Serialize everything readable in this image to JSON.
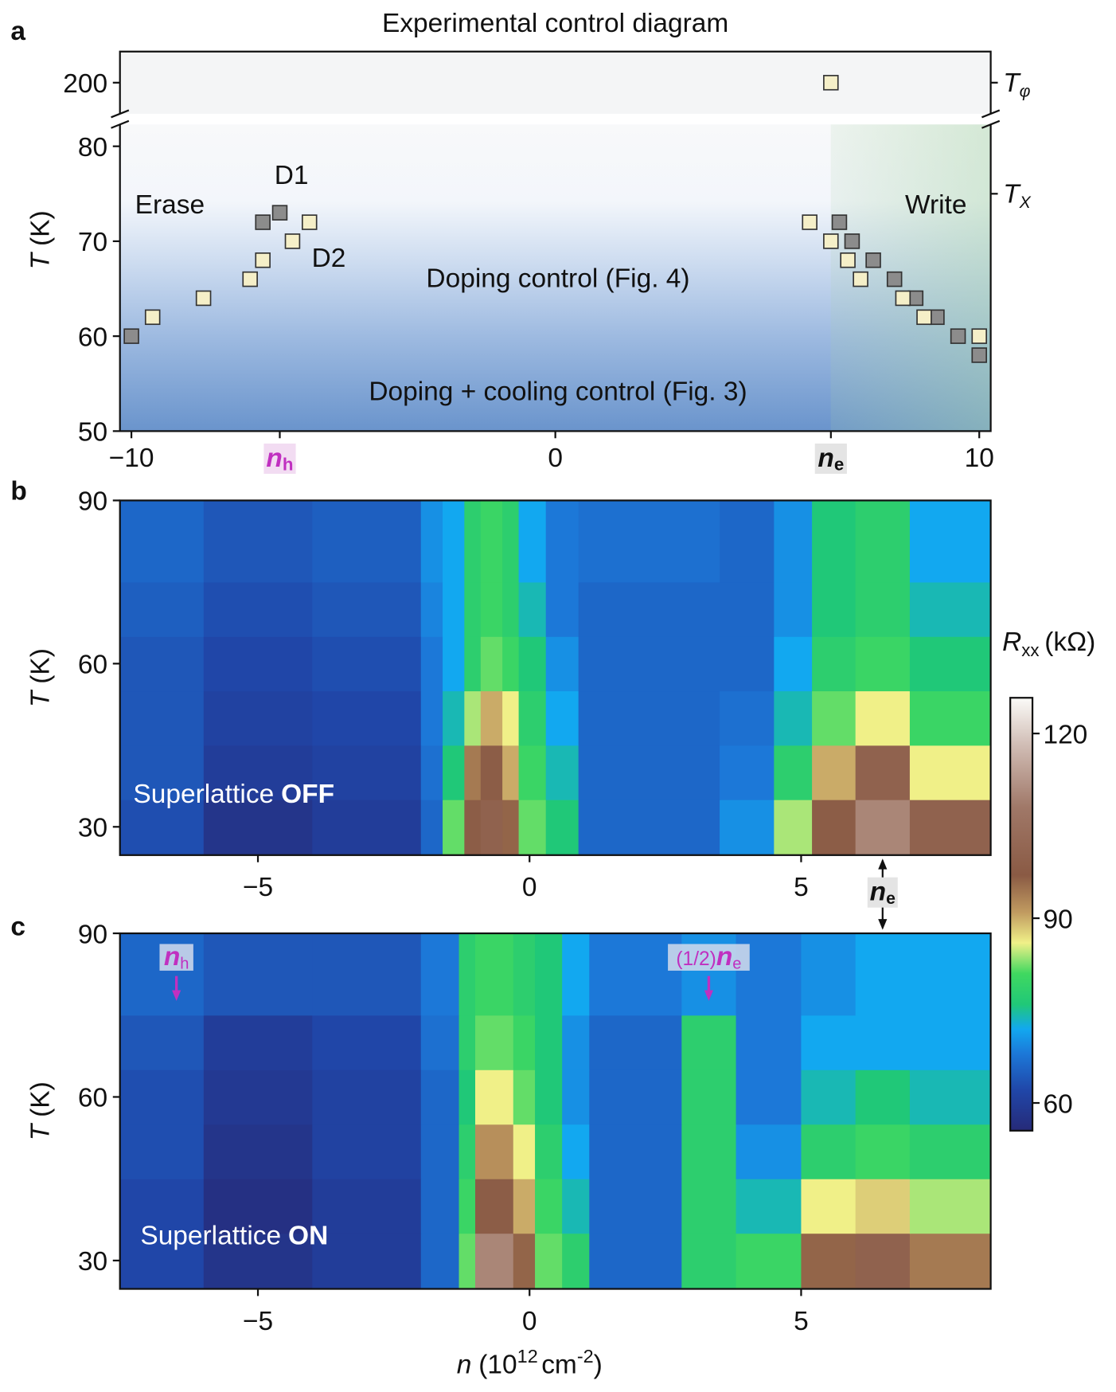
{
  "chart_data": [
    {
      "type": "scatter",
      "panel_label": "a",
      "title": "Experimental control diagram",
      "y_label": [
        "T",
        "(K)"
      ],
      "xlim": [
        -10.27,
        10.27
      ],
      "ylim": [
        50,
        82.3
      ],
      "ylim_top": [
        194.5,
        205.5
      ],
      "xticks": [
        {
          "value": -10,
          "label": "−10"
        },
        0,
        10
      ],
      "yticks": [
        50,
        60,
        70,
        80
      ],
      "yticks_top": [
        200
      ],
      "x_markers": [
        {
          "value": -6.5,
          "symbol": "n",
          "sub": "h",
          "color": "#c030c0"
        },
        {
          "value": 6.5,
          "symbol": "n",
          "sub": "e",
          "color": "#111111"
        }
      ],
      "right_ticks": [
        {
          "value": 200,
          "symbol": "T",
          "sub": "φ"
        },
        {
          "value": 75,
          "symbol": "T",
          "sub": "X"
        }
      ],
      "annotations": [
        "Erase",
        "Write",
        "Doping control (Fig. 4)",
        "Doping + cooling control (Fig. 3)"
      ],
      "series": [
        {
          "name": "D1",
          "color": "#8c8c8c",
          "x": [
            -10,
            -6.9,
            -6.5,
            6.7,
            7.0,
            7.5,
            8.0,
            8.5,
            9.0,
            9.5,
            10.0
          ],
          "values": [
            60,
            72,
            73,
            72,
            70,
            68,
            66,
            64,
            62,
            60,
            58
          ]
        },
        {
          "name": "D2",
          "color": "#f5efc8",
          "x": [
            -9.5,
            -8.3,
            -7.2,
            -6.9,
            -6.2,
            -5.8,
            6.0,
            6.5,
            6.9,
            7.2,
            8.2,
            8.7,
            10.0,
            6.5
          ],
          "values": [
            62,
            64,
            66,
            68,
            70,
            72,
            72,
            70,
            68,
            66,
            64,
            62,
            60,
            200
          ]
        }
      ]
    },
    {
      "type": "heatmap",
      "panel_label": "b",
      "y_label": [
        "T",
        "(K)"
      ],
      "annotation": [
        "Superlattice",
        "OFF"
      ],
      "xlim": [
        -7.54,
        8.49
      ],
      "ylim": [
        24.8,
        90
      ],
      "xticks": [
        {
          "value": -5,
          "label": "−5"
        },
        0,
        5
      ],
      "yticks": [
        30,
        60,
        90
      ],
      "markers": [
        {
          "value": 6.5,
          "symbol": "n",
          "sub": "e"
        }
      ],
      "x": [
        -7.54,
        -6,
        -4,
        -2,
        -1.6,
        -1.2,
        -0.9,
        -0.5,
        -0.2,
        0.3,
        0.9,
        3.5,
        4.5,
        5.2,
        6,
        7,
        8.49
      ],
      "y": [
        24.8,
        35,
        45,
        55,
        65,
        75,
        90
      ],
      "values": [
        [
          63,
          58,
          60,
          66,
          82,
          98,
          100,
          96,
          82,
          76,
          66,
          70,
          84,
          98,
          110,
          100
        ],
        [
          64,
          60,
          61,
          67,
          76,
          94,
          98,
          90,
          80,
          74,
          66,
          68,
          78,
          90,
          100,
          86
        ],
        [
          64,
          61,
          62,
          68,
          74,
          84,
          90,
          86,
          78,
          72,
          66,
          67,
          74,
          82,
          86,
          80
        ],
        [
          64,
          62,
          63,
          68,
          72,
          78,
          82,
          80,
          76,
          70,
          66,
          66,
          72,
          78,
          80,
          76
        ],
        [
          65,
          63,
          64,
          69,
          72,
          78,
          80,
          78,
          74,
          68,
          66,
          66,
          70,
          76,
          78,
          74
        ],
        [
          66,
          64,
          65,
          70,
          72,
          78,
          80,
          78,
          72,
          68,
          67,
          66,
          70,
          76,
          78,
          72
        ]
      ]
    },
    {
      "type": "heatmap",
      "panel_label": "c",
      "y_label": [
        "T",
        "(K)"
      ],
      "annotation": [
        "Superlattice",
        "ON"
      ],
      "x_label": [
        "n",
        "(10",
        "12",
        "cm",
        "-2",
        ")"
      ],
      "xlim": [
        -7.54,
        8.49
      ],
      "ylim": [
        24.8,
        90
      ],
      "xticks": [
        {
          "value": -5,
          "label": "−5"
        },
        0,
        5
      ],
      "yticks": [
        30,
        60,
        90
      ],
      "markers": [
        {
          "value": -6.5,
          "symbol": "n",
          "sub": "h"
        },
        {
          "value": 3.3,
          "prefix": "(1/2)",
          "symbol": "n",
          "sub": "e"
        }
      ],
      "x": [
        -7.54,
        -6,
        -4,
        -2,
        -1.3,
        -1.0,
        -0.3,
        0.1,
        0.6,
        1.1,
        2.8,
        3.8,
        5,
        6,
        7,
        8.49
      ],
      "y": [
        24.8,
        35,
        45,
        55,
        65,
        75,
        90
      ],
      "values": [
        [
          62,
          58,
          60,
          66,
          82,
          110,
          96,
          82,
          78,
          66,
          78,
          80,
          96,
          100,
          94
        ],
        [
          62,
          57,
          60,
          66,
          80,
          98,
          90,
          80,
          74,
          66,
          78,
          74,
          86,
          88,
          84
        ],
        [
          63,
          58,
          61,
          66,
          78,
          92,
          86,
          78,
          72,
          66,
          78,
          70,
          78,
          80,
          78
        ],
        [
          63,
          59,
          61,
          66,
          76,
          86,
          82,
          76,
          70,
          66,
          78,
          68,
          74,
          76,
          74
        ],
        [
          64,
          60,
          62,
          67,
          78,
          82,
          80,
          76,
          70,
          66,
          78,
          68,
          72,
          72,
          72
        ],
        [
          66,
          64,
          64,
          68,
          78,
          80,
          78,
          76,
          72,
          68,
          70,
          68,
          70,
          72,
          72
        ]
      ]
    }
  ],
  "colorbar": {
    "label": [
      "R",
      "xx",
      "(kΩ)"
    ],
    "lim": [
      55.5,
      125.8
    ],
    "ticks": [
      60,
      90,
      120
    ],
    "colormap": [
      [
        55.5,
        "#262a78"
      ],
      [
        62,
        "#2046a8"
      ],
      [
        68,
        "#1c78d8"
      ],
      [
        72,
        "#12a8f0"
      ],
      [
        76,
        "#20c878"
      ],
      [
        81,
        "#40d860"
      ],
      [
        86,
        "#f0f088"
      ],
      [
        91,
        "#c09a60"
      ],
      [
        97,
        "#8a5a44"
      ],
      [
        108,
        "#a07868"
      ],
      [
        118,
        "#d0bcb4"
      ],
      [
        125.8,
        "#fbfbf8"
      ]
    ]
  }
}
